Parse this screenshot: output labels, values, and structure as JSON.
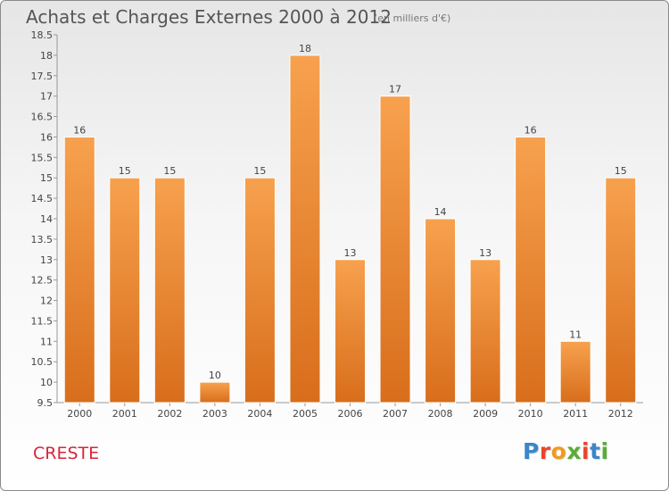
{
  "header": {
    "title": "Achats et Charges Externes 2000 à 2012",
    "unit": "(en milliers d'€)"
  },
  "footer": {
    "commune": "CRESTE",
    "logo": "Proxiti"
  },
  "colors": {
    "bar_top": "#f7a14e",
    "bar_bottom": "#d86e1c",
    "commune": "#d9243a",
    "logo_letters": [
      "#3a86c8",
      "#e8452c",
      "#f29a1c",
      "#5aac37",
      "#e8452c",
      "#3a86c8",
      "#5aac37"
    ]
  },
  "chart_data": {
    "type": "bar",
    "title": "Achats et Charges Externes 2000 à 2012",
    "subtitle": "(en milliers d'€)",
    "xlabel": "",
    "ylabel": "",
    "categories": [
      "2000",
      "2001",
      "2002",
      "2003",
      "2004",
      "2005",
      "2006",
      "2007",
      "2008",
      "2009",
      "2010",
      "2011",
      "2012"
    ],
    "values": [
      16,
      15,
      15,
      10,
      15,
      18,
      13,
      17,
      14,
      13,
      16,
      11,
      15
    ],
    "ylim": [
      9.5,
      18.5
    ],
    "yticks": [
      "9.5",
      "10",
      "10.5",
      "11",
      "11.5",
      "12",
      "12.5",
      "13",
      "13.5",
      "14",
      "14.5",
      "15",
      "15.5",
      "16",
      "16.5",
      "17",
      "17.5",
      "18",
      "18.5"
    ],
    "grid": false,
    "legend": "none"
  }
}
